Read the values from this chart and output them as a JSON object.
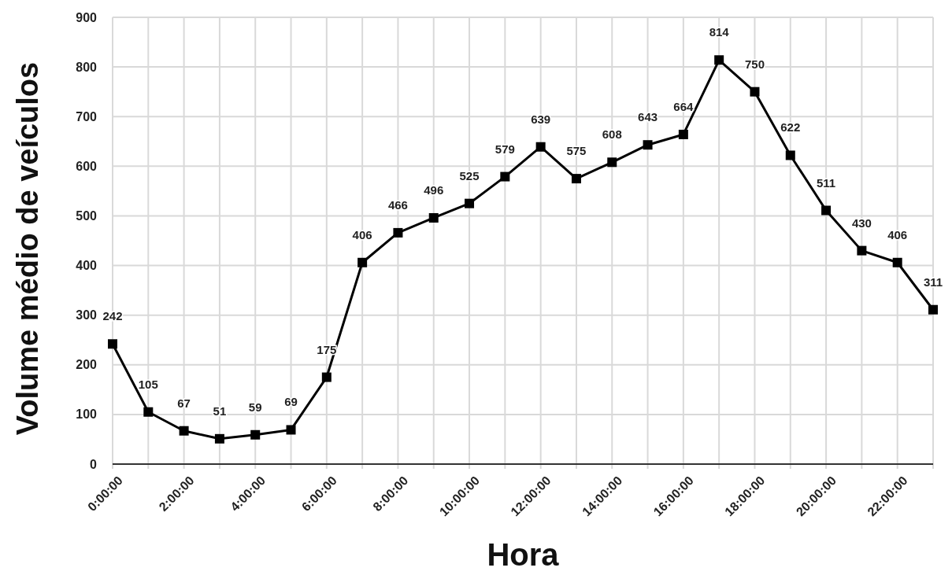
{
  "chart_data": {
    "type": "line",
    "xlabel": "Hora",
    "ylabel": "Volume médio de veículos",
    "x": [
      0,
      1,
      2,
      3,
      4,
      5,
      6,
      7,
      8,
      9,
      10,
      11,
      12,
      13,
      14,
      15,
      16,
      17,
      18,
      19,
      20,
      21,
      22,
      23
    ],
    "series": [
      {
        "color": "#000000",
        "values": [
          242,
          105,
          67,
          51,
          59,
          69,
          175,
          406,
          466,
          496,
          525,
          579,
          639,
          575,
          608,
          643,
          664,
          814,
          750,
          622,
          511,
          430,
          406,
          311
        ]
      }
    ],
    "xlim": [
      0,
      23
    ],
    "xticks": [
      {
        "value": 0,
        "label": "0:00:00"
      },
      {
        "value": 1,
        "label": null
      },
      {
        "value": 2,
        "label": "2:00:00"
      },
      {
        "value": 3,
        "label": null
      },
      {
        "value": 4,
        "label": "4:00:00"
      },
      {
        "value": 5,
        "label": null
      },
      {
        "value": 6,
        "label": "6:00:00"
      },
      {
        "value": 7,
        "label": null
      },
      {
        "value": 8,
        "label": "8:00:00"
      },
      {
        "value": 9,
        "label": null
      },
      {
        "value": 10,
        "label": "10:00:00"
      },
      {
        "value": 11,
        "label": null
      },
      {
        "value": 12,
        "label": "12:00:00"
      },
      {
        "value": 13,
        "label": null
      },
      {
        "value": 14,
        "label": "14:00:00"
      },
      {
        "value": 15,
        "label": null
      },
      {
        "value": 16,
        "label": "16:00:00"
      },
      {
        "value": 17,
        "label": null
      },
      {
        "value": 18,
        "label": "18:00:00"
      },
      {
        "value": 19,
        "label": null
      },
      {
        "value": 20,
        "label": "20:00:00"
      },
      {
        "value": 21,
        "label": null
      },
      {
        "value": 22,
        "label": "22:00:00"
      },
      {
        "value": 23,
        "label": null
      }
    ],
    "ylim": [
      0,
      900
    ],
    "yticks": [
      0,
      100,
      200,
      300,
      400,
      500,
      600,
      700,
      800,
      900
    ],
    "grid": true,
    "marker": "square",
    "line_style": "solid",
    "data_labels": true
  }
}
